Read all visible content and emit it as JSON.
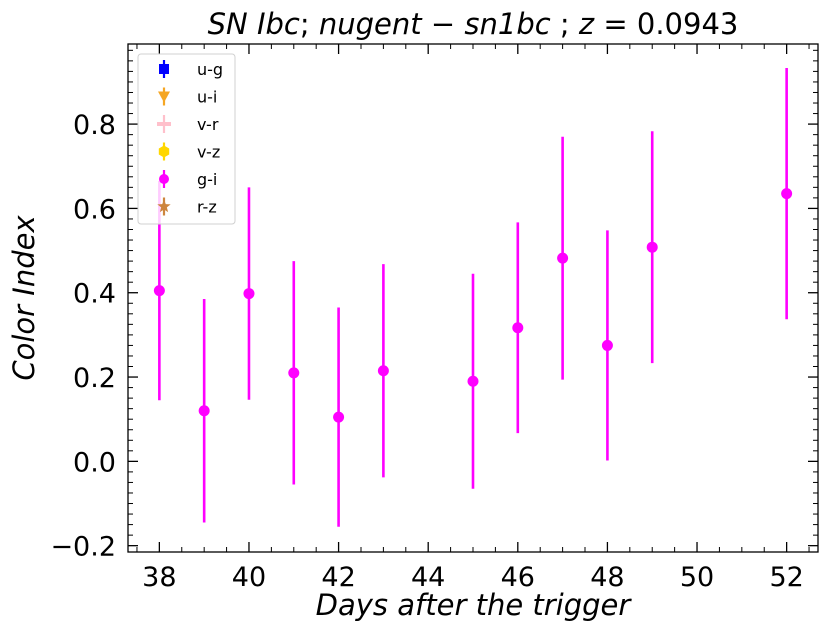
{
  "chart_data": {
    "type": "scatter",
    "title_parts": [
      "SN Ibc",
      "; ",
      "nugent",
      " − ",
      "sn1bc",
      " ; ",
      "z",
      " =  0.0943"
    ],
    "xlabel": "Days after the trigger",
    "ylabel": "Color Index",
    "xlim": [
      37.3,
      52.7
    ],
    "ylim": [
      -0.215,
      0.99
    ],
    "x_ticks": [
      38,
      40,
      42,
      44,
      46,
      48,
      50,
      52
    ],
    "y_ticks": [
      -0.2,
      0.0,
      0.2,
      0.4,
      0.6,
      0.8
    ],
    "x_tick_labels": [
      "38",
      "40",
      "42",
      "44",
      "46",
      "48",
      "50",
      "52"
    ],
    "y_tick_labels": [
      "−0.2",
      "0.0",
      "0.2",
      "0.4",
      "0.6",
      "0.8"
    ],
    "legend_position": "top-left",
    "series": [
      {
        "name": "u-g",
        "color": "#0000ff",
        "marker": "square",
        "x": [],
        "y": [],
        "err": []
      },
      {
        "name": "u-i",
        "color": "#f5a623",
        "marker": "triangle-down",
        "x": [],
        "y": [],
        "err": []
      },
      {
        "name": "v-r",
        "color": "#ffc0cb",
        "marker": "plus",
        "x": [],
        "y": [],
        "err": []
      },
      {
        "name": "v-z",
        "color": "#ffd700",
        "marker": "hexagon",
        "x": [],
        "y": [],
        "err": []
      },
      {
        "name": "g-i",
        "color": "#ff00ff",
        "marker": "circle",
        "x": [
          38,
          39,
          40,
          41,
          42,
          43,
          45,
          46,
          47,
          48,
          49,
          52
        ],
        "y": [
          0.405,
          0.12,
          0.398,
          0.21,
          0.105,
          0.215,
          0.19,
          0.317,
          0.482,
          0.275,
          0.508,
          0.635
        ],
        "err": [
          0.26,
          0.265,
          0.252,
          0.265,
          0.26,
          0.253,
          0.255,
          0.25,
          0.288,
          0.273,
          0.275,
          0.298
        ]
      },
      {
        "name": "r-z",
        "color": "#cd853f",
        "marker": "star",
        "x": [],
        "y": [],
        "err": []
      }
    ]
  }
}
